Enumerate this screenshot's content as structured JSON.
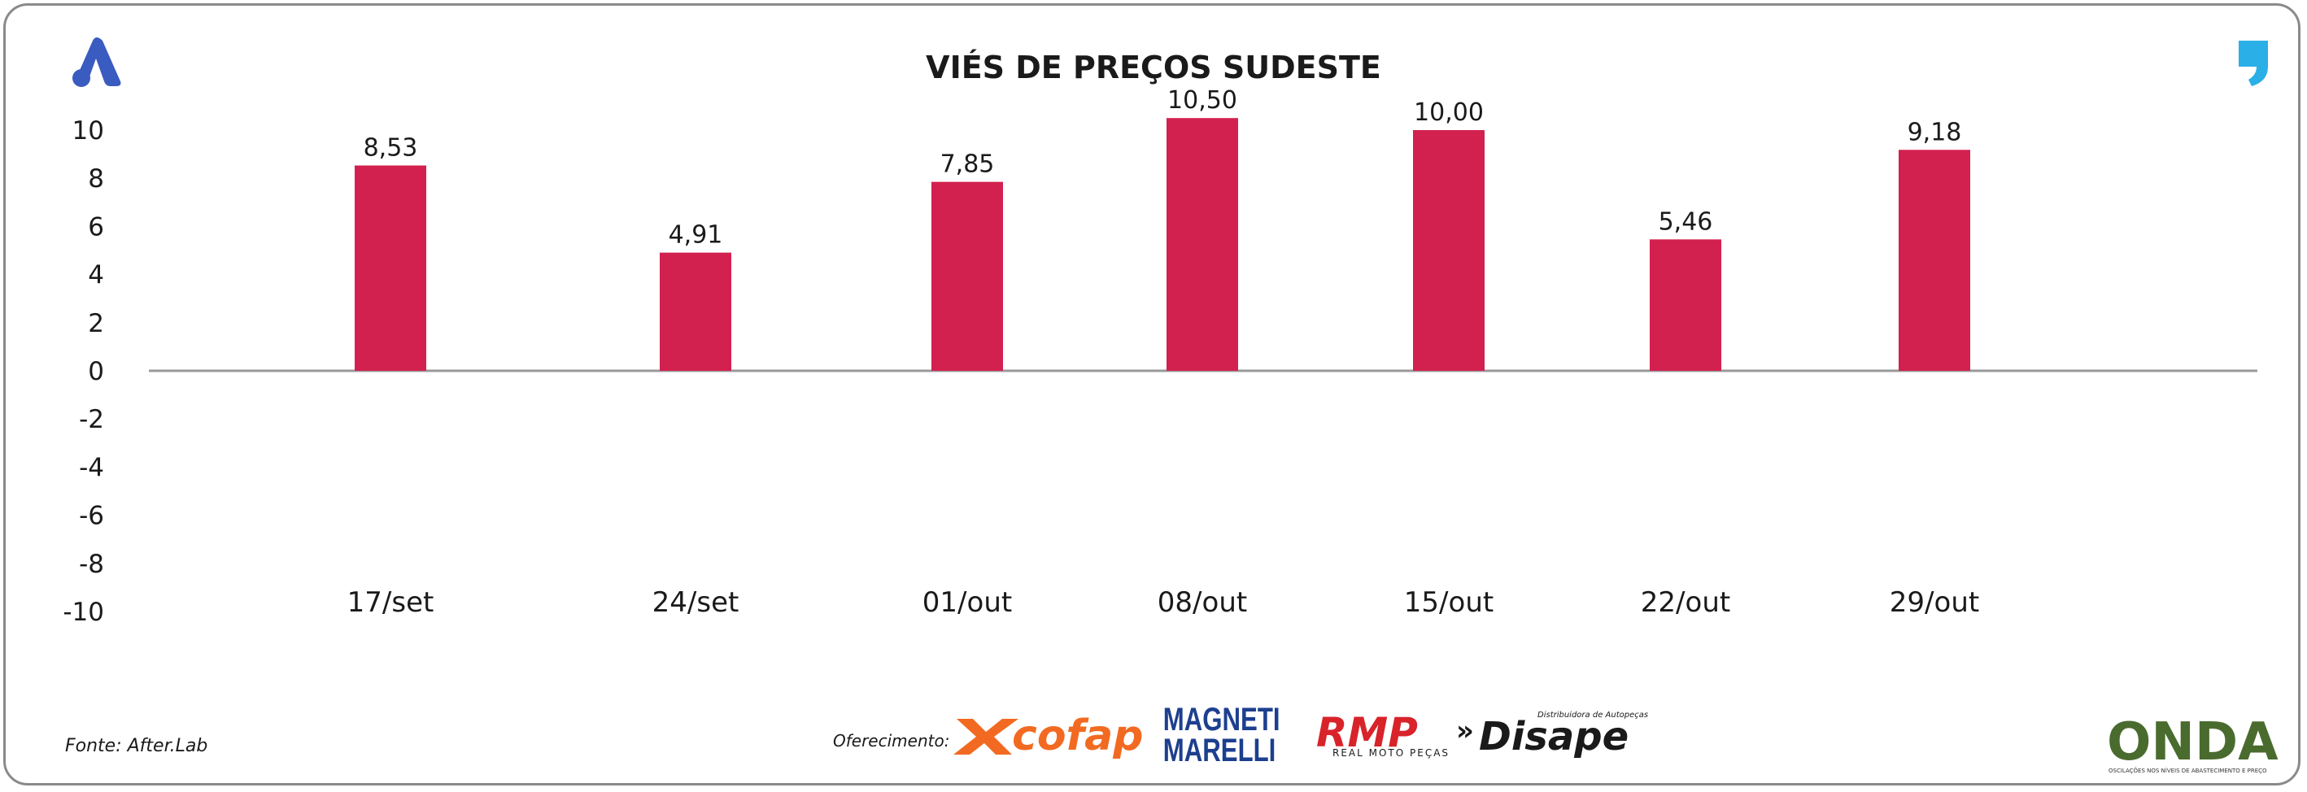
{
  "chart_data": {
    "type": "bar",
    "title": "VIÉS DE PREÇOS SUDESTE",
    "categories": [
      "17/set",
      "24/set",
      "01/out",
      "08/out",
      "15/out",
      "22/out",
      "29/out"
    ],
    "values": [
      8.53,
      4.91,
      7.85,
      10.5,
      10.0,
      5.46,
      9.18
    ],
    "data_labels": [
      "8,53",
      "4,91",
      "7,85",
      "10,50",
      "10,00",
      "5,46",
      "9,18"
    ],
    "yticks": [
      "10",
      "8",
      "6",
      "4",
      "2",
      "0",
      "-2",
      "-4",
      "-6",
      "-8",
      "-10"
    ],
    "ylim": [
      -10,
      10
    ],
    "grid": false,
    "legend": "none",
    "bar_color": "#d2214f",
    "axis_color": "#9a9a9a"
  },
  "footer": {
    "source": "Fonte: After.Lab",
    "sponsor_label": "Oferecimento:"
  },
  "logos": {
    "cofap": "cofap",
    "magneti_line1": "MAGNETI",
    "magneti_line2": "MARELLI",
    "rmp": "RMP",
    "rmp_sub": "REAL MOTO PEÇAS",
    "disape": "Disape",
    "disape_sub": "Distribuidora de Autopeças",
    "onda": "ONDA",
    "onda_sub": "OSCILAÇÕES NOS NÍVEIS DE ABASTECIMENTO E PREÇO"
  },
  "colors": {
    "brand_blue": "#3a5bbf",
    "brand_cyan": "#2ab0e6",
    "cofap_orange": "#f26a21",
    "magneti_navy": "#1d3f8f",
    "rmp_red": "#d8232a",
    "onda_green": "#4a6b2e"
  }
}
